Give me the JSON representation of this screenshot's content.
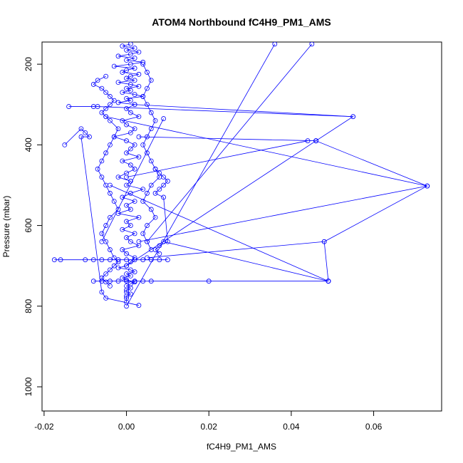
{
  "chart_data": {
    "type": "scatter",
    "title": "ATOM4 Northbound fC4H9_PM1_AMS",
    "xlabel": "fC4H9_PM1_AMS",
    "ylabel": "Pressure (mbar)",
    "xlim": [
      -0.0205,
      0.0765
    ],
    "ylim": [
      1060,
      145
    ],
    "y_reversed": true,
    "x_ticks": [
      -0.02,
      0.0,
      0.02,
      0.04,
      0.06
    ],
    "x_tick_labels": [
      "-0.02",
      "0.00",
      "0.02",
      "0.04",
      "0.06"
    ],
    "y_ticks": [
      200,
      400,
      600,
      800,
      1000
    ],
    "y_tick_labels": [
      "200",
      "400",
      "600",
      "800",
      "1000"
    ],
    "series_color": "#0000ff",
    "marker": "open-circle",
    "connected": true,
    "series": [
      {
        "x": [
          0.001,
          -0.001,
          0.002,
          0.0,
          0.003,
          0.001,
          -0.002,
          0.002,
          0.0,
          0.004,
          0.001,
          -0.003,
          0.002,
          0.0,
          -0.001,
          0.003,
          0.001,
          0.0,
          0.002,
          -0.002,
          0.001,
          0.003,
          0.0,
          0.001,
          -0.001,
          0.002,
          0.004,
          0.0,
          0.001,
          -0.002,
          0.002,
          0.0,
          0.001,
          0.003,
          -0.001,
          0.0,
          0.002,
          0.001,
          -0.003,
          0.0,
          0.002,
          0.001,
          0.0,
          0.003,
          -0.001,
          0.001,
          0.002,
          0.0,
          -0.002,
          0.001,
          0.0,
          0.004,
          0.001,
          -0.001,
          0.002,
          0.0,
          0.001,
          -0.002,
          0.003,
          0.0,
          0.001,
          -0.001,
          0.002,
          0.0,
          0.001,
          0.003,
          -0.001,
          0.0,
          0.002,
          0.001,
          0.0,
          -0.002,
          0.001,
          0.002,
          0.0,
          0.001,
          -0.001,
          0.0,
          0.002,
          0.001,
          0.0,
          0.001,
          0.0,
          0.0,
          0.001,
          0.0,
          0.0,
          0.0
        ],
        "y": [
          150,
          155,
          160,
          165,
          170,
          175,
          180,
          185,
          190,
          195,
          200,
          205,
          210,
          215,
          220,
          225,
          230,
          235,
          240,
          245,
          250,
          255,
          260,
          265,
          270,
          275,
          280,
          285,
          290,
          295,
          300,
          310,
          320,
          330,
          340,
          350,
          360,
          370,
          380,
          390,
          400,
          410,
          420,
          430,
          440,
          450,
          460,
          470,
          480,
          490,
          500,
          510,
          520,
          530,
          540,
          550,
          560,
          570,
          580,
          590,
          600,
          610,
          620,
          630,
          640,
          650,
          660,
          670,
          680,
          690,
          700,
          705,
          710,
          715,
          720,
          725,
          730,
          735,
          740,
          745,
          750,
          755,
          760,
          765,
          770,
          775,
          780,
          790
        ]
      },
      {
        "x": [
          -0.005,
          -0.007,
          -0.008,
          -0.006,
          -0.005,
          -0.004,
          -0.003,
          -0.004,
          -0.005,
          -0.006,
          -0.005,
          -0.004,
          -0.002,
          -0.003,
          -0.004,
          -0.005,
          -0.006,
          -0.007,
          -0.006,
          -0.005,
          -0.004,
          -0.003,
          -0.002,
          -0.004,
          -0.005,
          -0.006,
          -0.005,
          -0.004,
          -0.003,
          -0.002,
          -0.003,
          -0.004,
          -0.005,
          -0.006,
          -0.005,
          -0.004
        ],
        "y": [
          230,
          240,
          250,
          260,
          270,
          280,
          290,
          300,
          310,
          320,
          330,
          340,
          360,
          380,
          400,
          420,
          440,
          460,
          480,
          500,
          520,
          540,
          560,
          580,
          600,
          620,
          640,
          660,
          680,
          690,
          700,
          710,
          720,
          730,
          740,
          750
        ]
      },
      {
        "x": [
          0.004,
          0.005,
          0.006,
          0.005,
          0.004,
          0.005,
          0.006,
          0.007,
          0.006,
          0.005,
          0.004,
          0.005,
          0.006,
          0.007,
          0.008,
          0.006,
          0.005,
          0.004,
          0.006,
          0.007,
          0.005,
          0.004,
          0.005,
          0.006
        ],
        "y": [
          200,
          220,
          240,
          260,
          280,
          300,
          320,
          340,
          360,
          380,
          400,
          420,
          440,
          460,
          480,
          500,
          520,
          540,
          560,
          580,
          600,
          620,
          640,
          660
        ]
      },
      {
        "x": [
          0.007,
          0.008,
          0.009,
          0.01,
          0.009,
          0.008,
          0.007,
          0.009,
          0.01,
          0.008,
          0.007,
          0.008
        ],
        "y": [
          460,
          470,
          480,
          490,
          500,
          510,
          520,
          530,
          640,
          650,
          660,
          670
        ]
      },
      {
        "x": [
          -0.0175,
          -0.016,
          -0.01,
          -0.008,
          -0.006,
          -0.004,
          -0.002,
          0.0,
          0.002,
          0.004,
          0.006,
          0.008,
          0.01
        ],
        "y": [
          685,
          685,
          685,
          685,
          685,
          685,
          685,
          685,
          685,
          685,
          685,
          685,
          685
        ]
      },
      {
        "x": [
          -0.008,
          -0.006,
          -0.004,
          -0.002,
          0.0,
          0.002,
          0.004,
          0.006,
          0.02,
          0.049
        ],
        "y": [
          738,
          738,
          738,
          738,
          738,
          738,
          738,
          738,
          738,
          738
        ]
      },
      {
        "x": [
          -0.014,
          -0.008,
          -0.007,
          0.055,
          0.046,
          0.073,
          0.048,
          0.049
        ],
        "y": [
          305,
          305,
          305,
          330,
          390,
          502,
          640,
          738
        ]
      },
      {
        "x": [
          -0.015,
          -0.011,
          -0.01,
          -0.009,
          -0.011,
          -0.006,
          -0.005,
          0.003
        ],
        "y": [
          400,
          360,
          370,
          380,
          380,
          765,
          780,
          798
        ]
      }
    ],
    "long_segments": [
      {
        "x": [
          0.0,
          0.036
        ],
        "y": [
          800,
          150
        ]
      },
      {
        "x": [
          0.005,
          0.045
        ],
        "y": [
          640,
          150
        ]
      },
      {
        "x": [
          0.0,
          0.046
        ],
        "y": [
          700,
          390
        ]
      },
      {
        "x": [
          0.002,
          0.055
        ],
        "y": [
          300,
          330
        ]
      },
      {
        "x": [
          -0.005,
          0.073
        ],
        "y": [
          330,
          502
        ]
      },
      {
        "x": [
          0.003,
          0.073
        ],
        "y": [
          640,
          502
        ]
      },
      {
        "x": [
          0.009,
          0.049
        ],
        "y": [
          640,
          738
        ]
      },
      {
        "x": [
          0.005,
          0.048
        ],
        "y": [
          680,
          640
        ]
      },
      {
        "x": [
          0.003,
          0.046
        ],
        "y": [
          380,
          390
        ]
      },
      {
        "x": [
          -0.006,
          0.009
        ],
        "y": [
          640,
          335
        ]
      },
      {
        "x": [
          0.0,
          0.044
        ],
        "y": [
          480,
          390
        ]
      },
      {
        "x": [
          -0.004,
          0.049
        ],
        "y": [
          500,
          738
        ]
      }
    ]
  }
}
